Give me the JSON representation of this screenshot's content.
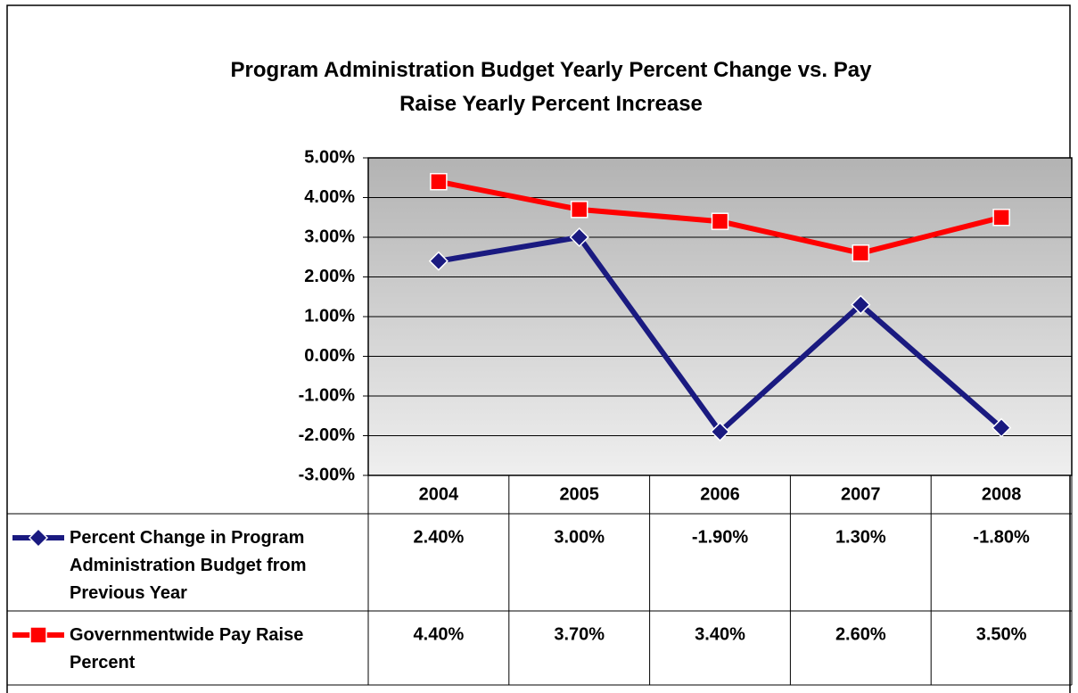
{
  "chart_data": {
    "type": "line",
    "title": "Program Administration Budget Yearly Percent Change vs. Pay Raise Yearly Percent Increase",
    "categories": [
      "2004",
      "2005",
      "2006",
      "2007",
      "2008"
    ],
    "series": [
      {
        "name": "Percent Change in Program Administration Budget from Previous Year",
        "color": "#1a1a80",
        "marker": "diamond",
        "values": [
          2.4,
          3.0,
          -1.9,
          1.3,
          -1.8
        ],
        "value_labels": [
          "2.40%",
          "3.00%",
          "-1.90%",
          "1.30%",
          "-1.80%"
        ]
      },
      {
        "name": "Governmentwide Pay Raise Percent",
        "color": "#ff0000",
        "marker": "square",
        "values": [
          4.4,
          3.7,
          3.4,
          2.6,
          3.5
        ],
        "value_labels": [
          "4.40%",
          "3.70%",
          "3.40%",
          "2.60%",
          "3.50%"
        ]
      }
    ],
    "ylim": [
      -3,
      5
    ],
    "yticks": [
      {
        "value": -3,
        "label": "-3.00%"
      },
      {
        "value": -2,
        "label": "-2.00%"
      },
      {
        "value": -1,
        "label": "-1.00%"
      },
      {
        "value": 0,
        "label": "0.00%"
      },
      {
        "value": 1,
        "label": "1.00%"
      },
      {
        "value": 2,
        "label": "2.00%"
      },
      {
        "value": 3,
        "label": "3.00%"
      },
      {
        "value": 4,
        "label": "4.00%"
      },
      {
        "value": 5,
        "label": "5.00%"
      }
    ],
    "grid": true,
    "data_table": true
  }
}
